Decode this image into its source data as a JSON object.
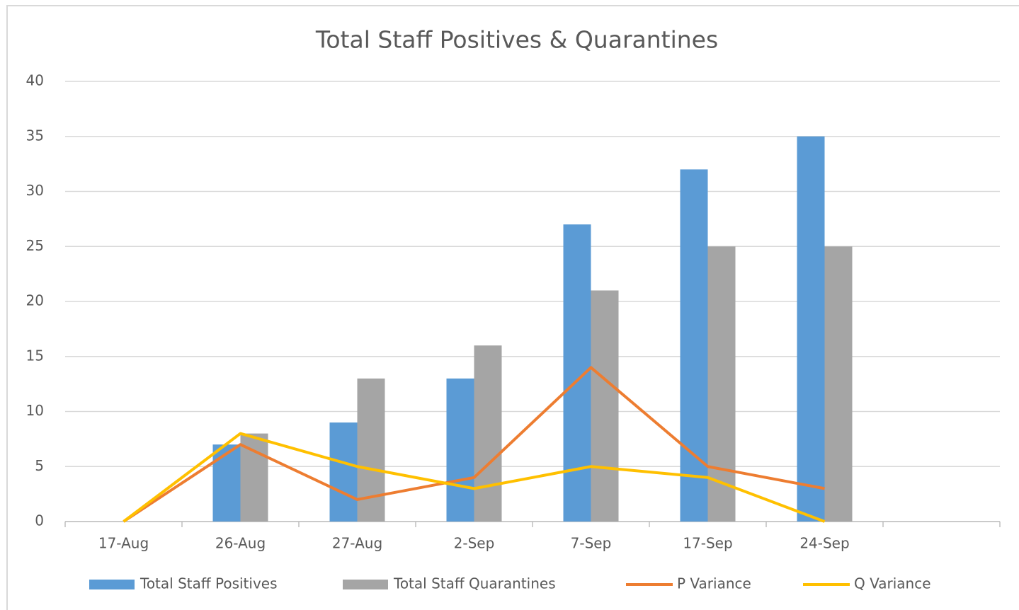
{
  "chart_data": {
    "type": "bar",
    "title": "Total Staff Positives & Quarantines",
    "categories": [
      "17-Aug",
      "26-Aug",
      "27-Aug",
      "2-Sep",
      "7-Sep",
      "17-Sep",
      "24-Sep",
      null
    ],
    "series": [
      {
        "name": "Total Staff Positives",
        "type": "bar",
        "color": "#5b9bd5",
        "values": [
          0,
          7,
          9,
          13,
          27,
          32,
          35,
          null
        ]
      },
      {
        "name": "Total Staff Quarantines",
        "type": "bar",
        "color": "#a5a5a5",
        "values": [
          0,
          8,
          13,
          16,
          21,
          25,
          25,
          null
        ]
      },
      {
        "name": "P Variance",
        "type": "line",
        "color": "#ed7d31",
        "values": [
          0,
          7,
          2,
          4,
          14,
          5,
          3,
          null
        ]
      },
      {
        "name": "Q Variance",
        "type": "line",
        "color": "#ffc000",
        "values": [
          0,
          8,
          5,
          3,
          5,
          4,
          0,
          null
        ]
      }
    ],
    "ylim": [
      0,
      40
    ],
    "yticks": [
      0,
      5,
      10,
      15,
      20,
      25,
      30,
      35,
      40
    ],
    "grid": true,
    "legend": "bottom"
  }
}
